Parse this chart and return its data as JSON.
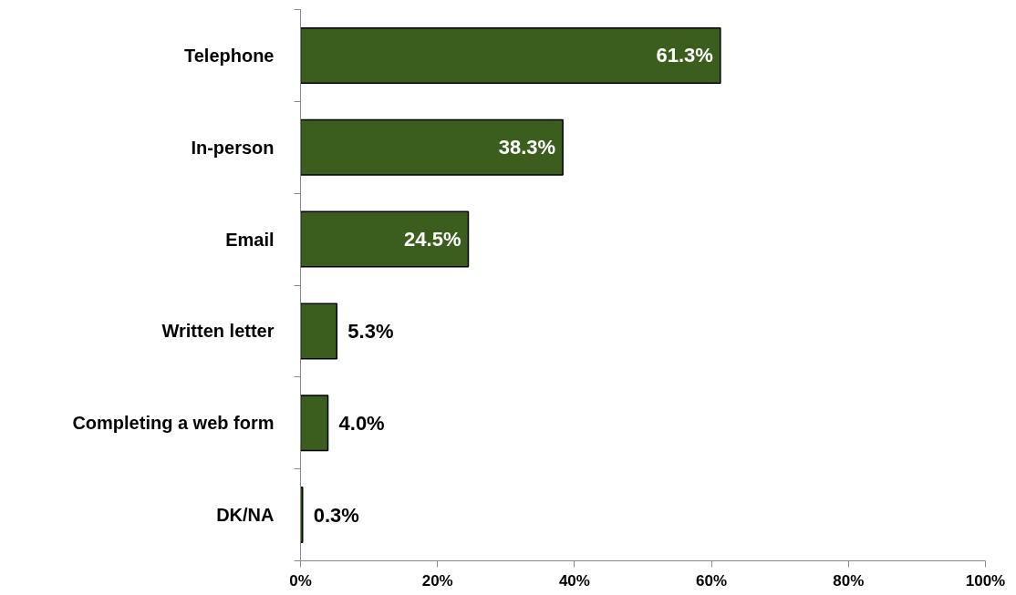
{
  "chart_data": {
    "type": "bar",
    "orientation": "horizontal",
    "categories": [
      "Telephone",
      "In-person",
      "Email",
      "Written letter",
      "Completing a web form",
      "DK/NA"
    ],
    "values": [
      61.3,
      38.3,
      24.5,
      5.3,
      4.0,
      0.3
    ],
    "value_labels": [
      "61.3%",
      "38.3%",
      "24.5%",
      "5.3%",
      "4.0%",
      "0.3%"
    ],
    "color": "#3b5e1f",
    "xlim": [
      0,
      100
    ],
    "xticks": [
      {
        "value": 0,
        "label": "0%"
      },
      {
        "value": 20,
        "label": "20%"
      },
      {
        "value": 40,
        "label": "40%"
      },
      {
        "value": 60,
        "label": "60%"
      },
      {
        "value": 80,
        "label": "80%"
      },
      {
        "value": 100,
        "label": "100%"
      }
    ],
    "grid": false
  }
}
